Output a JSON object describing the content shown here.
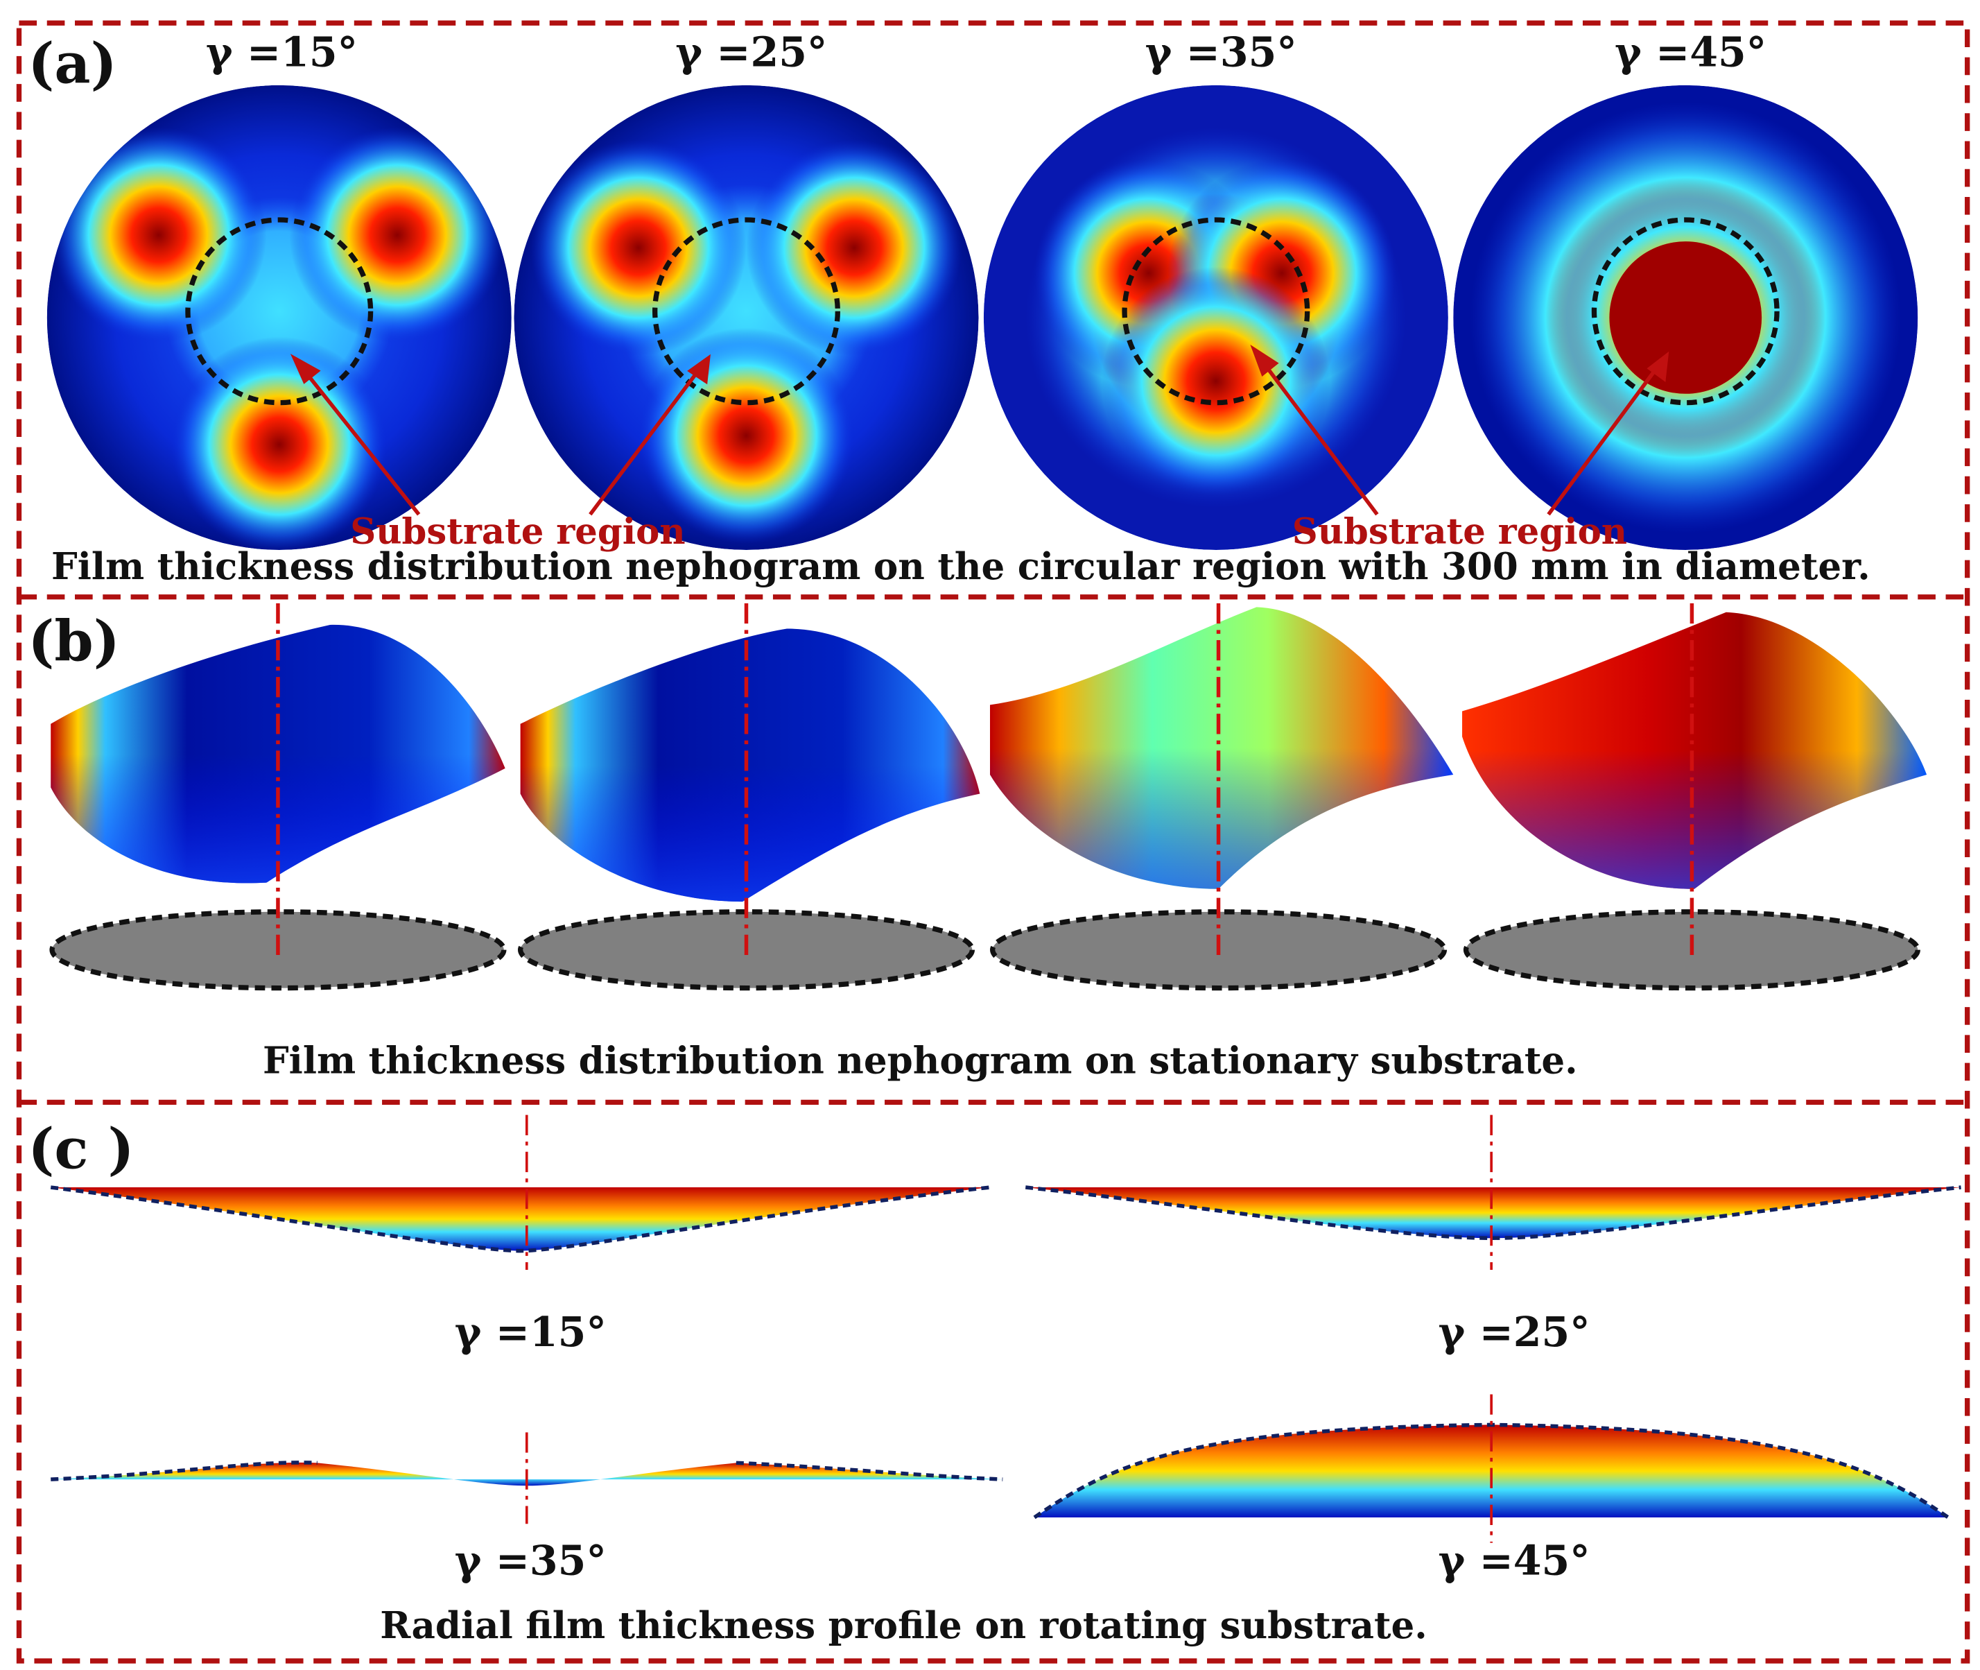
{
  "panel_a": {
    "label": "(a)",
    "angles": [
      "γ =15°",
      "γ =25°",
      "γ =35°",
      "γ =45°"
    ],
    "annotation": "Substrate region",
    "caption": "Film thickness distribution nephogram on the circular region with 300 mm in diameter."
  },
  "panel_b": {
    "label": "(b)",
    "caption": "Film thickness distribution nephogram on stationary substrate."
  },
  "panel_c": {
    "label": "(c )",
    "angles": [
      "γ =15°",
      "γ =25°",
      "γ =35°",
      "γ =45°"
    ],
    "caption": "Radial film thickness profile on rotating substrate."
  },
  "colors": {
    "border": "#b01010",
    "annotation": "#b01010",
    "low": "#00008b",
    "high": "#8b0000"
  }
}
